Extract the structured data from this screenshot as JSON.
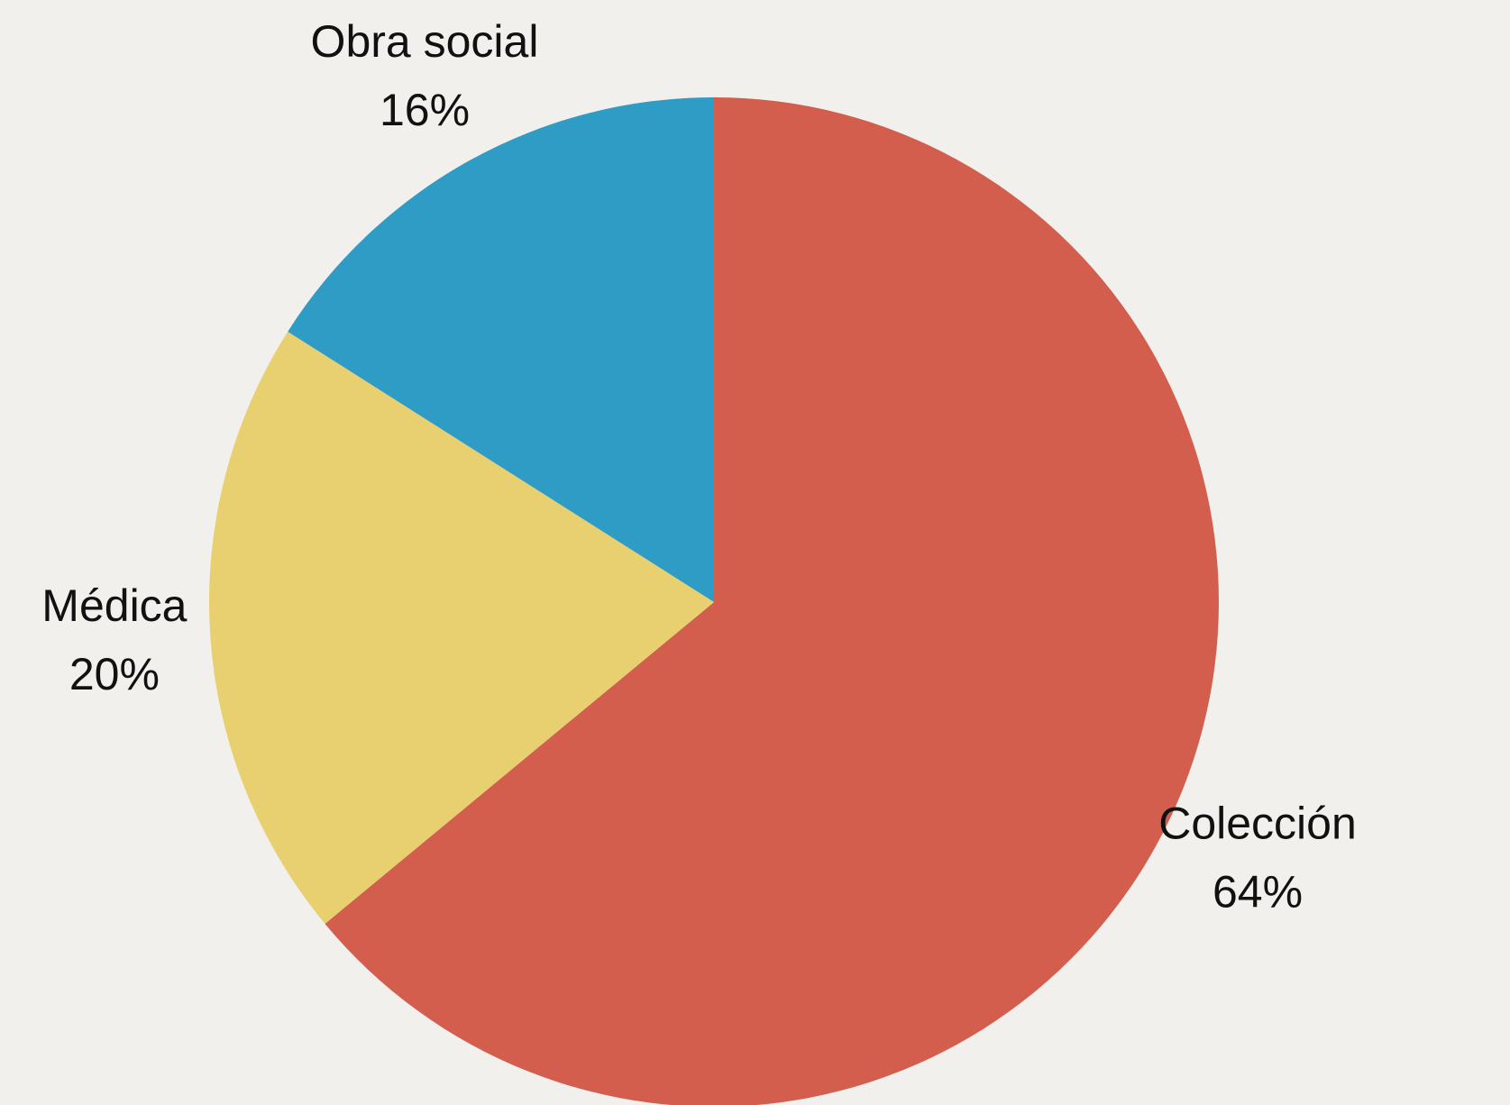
{
  "chart_data": {
    "type": "pie",
    "title": "",
    "start": "12 o'clock",
    "direction": "clockwise",
    "slices": [
      {
        "name": "Colección",
        "value": 64,
        "percent_label": "64%",
        "color": "#d35e4e"
      },
      {
        "name": "Médica",
        "value": 20,
        "percent_label": "20%",
        "color": "#e8d071"
      },
      {
        "name": "Obra social",
        "value": 16,
        "percent_label": "16%",
        "color": "#2f9cc6"
      }
    ],
    "legend": "none",
    "background": "#f1f0ed",
    "label_color": "#111111"
  }
}
